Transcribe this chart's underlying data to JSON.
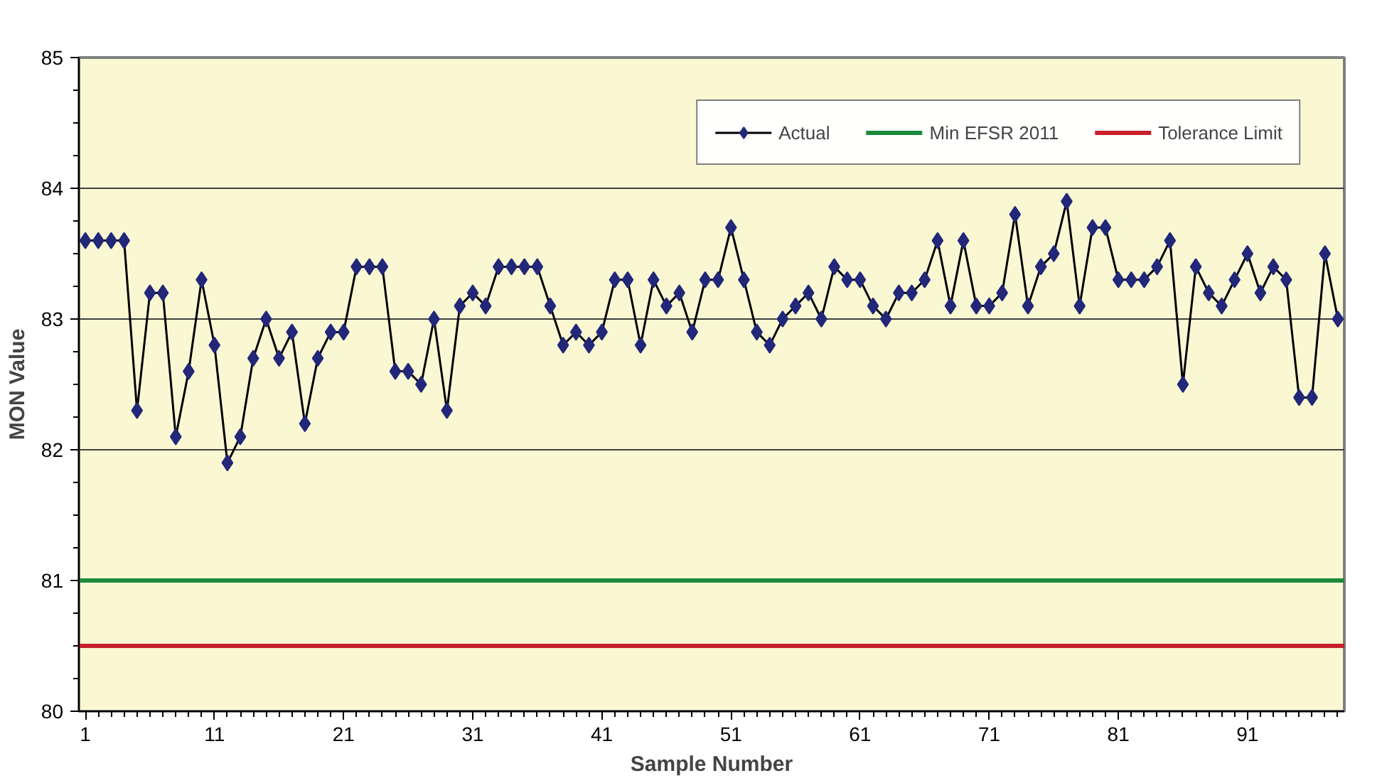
{
  "chart_data": {
    "type": "line",
    "xlabel": "Sample Number",
    "ylabel": "MON Value",
    "x": [
      1,
      2,
      3,
      4,
      5,
      6,
      7,
      8,
      9,
      10,
      11,
      12,
      13,
      14,
      15,
      16,
      17,
      18,
      19,
      20,
      21,
      22,
      23,
      24,
      25,
      26,
      27,
      28,
      29,
      30,
      31,
      32,
      33,
      34,
      35,
      36,
      37,
      38,
      39,
      40,
      41,
      42,
      43,
      44,
      45,
      46,
      47,
      48,
      49,
      50,
      51,
      52,
      53,
      54,
      55,
      56,
      57,
      58,
      59,
      60,
      61,
      62,
      63,
      64,
      65,
      66,
      67,
      68,
      69,
      70,
      71,
      72,
      73,
      74,
      75,
      76,
      77,
      78,
      79,
      80,
      81,
      82,
      83,
      84,
      85,
      86,
      87,
      88,
      89,
      90,
      91,
      92,
      93,
      94,
      95,
      96,
      97,
      98
    ],
    "series": [
      {
        "name": "Actual",
        "color": "#22277a",
        "values": [
          83.6,
          83.6,
          83.6,
          83.6,
          82.3,
          83.2,
          83.2,
          82.1,
          82.6,
          83.3,
          82.8,
          81.9,
          82.1,
          82.7,
          83.0,
          82.7,
          82.9,
          82.2,
          82.7,
          82.9,
          82.9,
          83.4,
          83.4,
          83.4,
          82.6,
          82.6,
          82.5,
          83.0,
          82.3,
          83.1,
          83.2,
          83.1,
          83.4,
          83.4,
          83.4,
          83.4,
          83.1,
          82.8,
          82.9,
          82.8,
          82.9,
          83.3,
          83.3,
          82.8,
          83.3,
          83.1,
          83.2,
          82.9,
          83.3,
          83.3,
          83.7,
          83.3,
          82.9,
          82.8,
          83.0,
          83.1,
          83.2,
          83.0,
          83.4,
          83.3,
          83.3,
          83.1,
          83.0,
          83.2,
          83.2,
          83.3,
          83.6,
          83.1,
          83.6,
          83.1,
          83.1,
          83.2,
          83.8,
          83.1,
          83.4,
          83.5,
          83.9,
          83.1,
          83.7,
          83.7,
          83.3,
          83.3,
          83.3,
          83.4,
          83.6,
          82.5,
          83.4,
          83.2,
          83.1,
          83.3,
          83.5,
          83.2,
          83.4,
          83.3,
          82.4,
          82.4,
          83.5,
          83.0
        ]
      }
    ],
    "ref_lines": [
      {
        "axis": "y",
        "value": 81,
        "label": "Min EFSR 2011",
        "color": "#1a8a3a"
      },
      {
        "axis": "y",
        "value": 80.5,
        "label": "Tolerance Limit",
        "color": "#c8202a"
      }
    ],
    "xlim": [
      0.5,
      98.5
    ],
    "xticks": [
      1,
      11,
      21,
      31,
      41,
      51,
      61,
      71,
      81,
      91
    ],
    "ylim": [
      80,
      85
    ],
    "yticks": [
      80,
      81,
      82,
      83,
      84,
      85
    ],
    "grid": "y",
    "legend": "top right",
    "marker": "diamond",
    "line_style": "solid"
  }
}
